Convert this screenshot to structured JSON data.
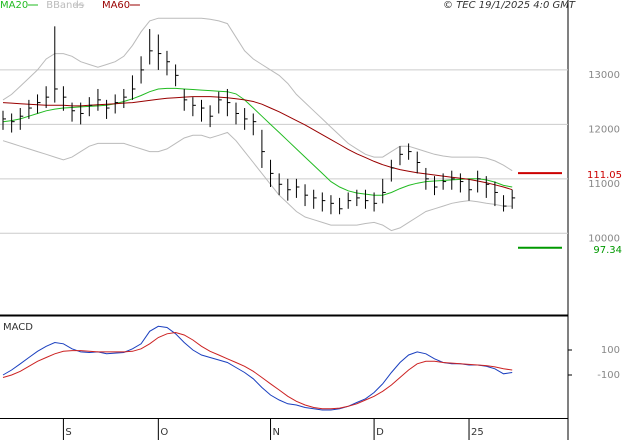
{
  "chart_data": [
    {
      "type": "hlc",
      "source": "© TEC 19/1/2025 4:0 GMT",
      "color": "#000000",
      "high": [
        12250,
        12200,
        12300,
        12450,
        12550,
        12700,
        13800,
        12700,
        12400,
        12400,
        12500,
        12650,
        12450,
        12550,
        12650,
        12900,
        13250,
        13750,
        13650,
        13350,
        13100,
        12650,
        12500,
        12450,
        12350,
        12600,
        12650,
        12400,
        12300,
        12200,
        11900,
        11350,
        11100,
        11000,
        11000,
        10900,
        10800,
        10750,
        10700,
        10650,
        10750,
        10800,
        10800,
        10750,
        11000,
        11350,
        11600,
        11650,
        11500,
        11200,
        11050,
        11100,
        11150,
        11100,
        11000,
        11150,
        11050,
        10950,
        10700,
        10800
      ],
      "low": [
        11900,
        11850,
        11900,
        12100,
        12200,
        12300,
        12400,
        12250,
        12050,
        12000,
        12150,
        12250,
        12100,
        12200,
        12300,
        12450,
        12750,
        13100,
        13000,
        12900,
        12700,
        12250,
        12150,
        12050,
        11950,
        12200,
        12150,
        12000,
        11900,
        11800,
        11200,
        10850,
        10700,
        10600,
        10650,
        10500,
        10450,
        10400,
        10350,
        10350,
        10450,
        10500,
        10450,
        10400,
        10550,
        10950,
        11250,
        11350,
        11100,
        10800,
        10700,
        10800,
        10800,
        10750,
        10600,
        10750,
        10650,
        10500,
        10400,
        10450
      ],
      "close": [
        12100,
        12050,
        12150,
        12300,
        12400,
        12500,
        12650,
        12500,
        12250,
        12200,
        12350,
        12450,
        12300,
        12400,
        12500,
        12650,
        13000,
        13350,
        13300,
        13150,
        12900,
        12450,
        12350,
        12300,
        12150,
        12450,
        12400,
        12200,
        12100,
        12050,
        11500,
        11100,
        10900,
        10800,
        10850,
        10700,
        10650,
        10600,
        10550,
        10450,
        10600,
        10650,
        10600,
        10550,
        10750,
        11200,
        11450,
        11500,
        11300,
        11000,
        10850,
        10950,
        11000,
        10950,
        10800,
        11000,
        10900,
        10750,
        10500,
        10650
      ],
      "series": [
        {
          "name": "MA20",
          "color": "#22bb22",
          "values": [
            12050,
            12070,
            12100,
            12150,
            12200,
            12250,
            12280,
            12300,
            12310,
            12320,
            12330,
            12340,
            12350,
            12380,
            12420,
            12470,
            12530,
            12600,
            12650,
            12660,
            12660,
            12650,
            12640,
            12630,
            12620,
            12610,
            12600,
            12560,
            12450,
            12300,
            12150,
            12000,
            11850,
            11700,
            11550,
            11400,
            11250,
            11100,
            10950,
            10850,
            10780,
            10740,
            10720,
            10700,
            10700,
            10750,
            10820,
            10880,
            10920,
            10950,
            10960,
            10970,
            10980,
            10990,
            11000,
            11000,
            10980,
            10940,
            10880,
            10850
          ]
        },
        {
          "name": "BBands",
          "color": "#bbbbbb",
          "upper": [
            12450,
            12550,
            12700,
            12850,
            13000,
            13200,
            13300,
            13300,
            13250,
            13150,
            13100,
            13050,
            13100,
            13150,
            13250,
            13450,
            13700,
            13900,
            13950,
            13950,
            13950,
            13950,
            13950,
            13950,
            13930,
            13900,
            13850,
            13600,
            13350,
            13200,
            13100,
            13000,
            12900,
            12750,
            12550,
            12400,
            12250,
            12100,
            11950,
            11800,
            11650,
            11550,
            11450,
            11400,
            11400,
            11500,
            11600,
            11600,
            11550,
            11500,
            11450,
            11420,
            11400,
            11400,
            11400,
            11400,
            11380,
            11330,
            11250,
            11150
          ],
          "lower": [
            11700,
            11650,
            11600,
            11550,
            11500,
            11450,
            11400,
            11350,
            11400,
            11500,
            11600,
            11650,
            11650,
            11650,
            11650,
            11600,
            11550,
            11500,
            11500,
            11550,
            11650,
            11750,
            11800,
            11800,
            11750,
            11800,
            11850,
            11700,
            11500,
            11300,
            11100,
            10900,
            10700,
            10550,
            10400,
            10300,
            10250,
            10200,
            10150,
            10150,
            10150,
            10150,
            10180,
            10200,
            10150,
            10050,
            10100,
            10200,
            10300,
            10400,
            10450,
            10500,
            10550,
            10580,
            10600,
            10580,
            10550,
            10530,
            10500,
            10500
          ]
        },
        {
          "name": "MA60",
          "color": "#990000",
          "values": [
            12400,
            12390,
            12380,
            12370,
            12360,
            12350,
            12350,
            12350,
            12340,
            12340,
            12350,
            12360,
            12370,
            12380,
            12390,
            12400,
            12420,
            12440,
            12460,
            12480,
            12490,
            12500,
            12510,
            12510,
            12510,
            12500,
            12490,
            12470,
            12450,
            12420,
            12370,
            12300,
            12230,
            12150,
            12070,
            11990,
            11900,
            11810,
            11720,
            11630,
            11540,
            11460,
            11390,
            11320,
            11260,
            11210,
            11170,
            11140,
            11110,
            11090,
            11070,
            11050,
            11030,
            11010,
            10990,
            10960,
            10930,
            10890,
            10850,
            10800
          ]
        }
      ],
      "annotations": [
        {
          "value": 11105,
          "label": "111.05",
          "color": "#cc0000"
        },
        {
          "value": 9734,
          "label": "97.34",
          "color": "#009900"
        }
      ],
      "ylim": [
        8500,
        14100
      ],
      "yticks": [
        10000,
        11000,
        12000,
        13000
      ],
      "grid": true
    },
    {
      "type": "line",
      "title": "MACD",
      "categories": [
        null,
        null,
        null,
        null,
        null,
        null,
        null,
        "S",
        null,
        null,
        null,
        null,
        null,
        null,
        null,
        null,
        null,
        null,
        "O",
        null,
        null,
        null,
        null,
        null,
        null,
        null,
        null,
        null,
        null,
        null,
        null,
        "N",
        null,
        null,
        null,
        null,
        null,
        null,
        null,
        null,
        null,
        null,
        null,
        "D",
        null,
        null,
        null,
        null,
        null,
        null,
        null,
        null,
        null,
        null,
        "25",
        null,
        null,
        null,
        null,
        null
      ],
      "series": [
        {
          "color": "#1a3fbf",
          "values": [
            -100,
            -60,
            -10,
            40,
            90,
            130,
            160,
            150,
            110,
            85,
            80,
            85,
            70,
            75,
            80,
            110,
            150,
            250,
            290,
            280,
            230,
            160,
            100,
            60,
            40,
            20,
            0,
            -40,
            -80,
            -130,
            -200,
            -260,
            -300,
            -330,
            -340,
            -360,
            -370,
            -380,
            -380,
            -370,
            -350,
            -320,
            -290,
            -240,
            -170,
            -80,
            0,
            60,
            85,
            70,
            30,
            0,
            -10,
            -10,
            -20,
            -20,
            -30,
            -50,
            -90,
            -80
          ]
        },
        {
          "color": "#cc2222",
          "values": [
            -120,
            -100,
            -70,
            -30,
            10,
            40,
            70,
            90,
            95,
            95,
            90,
            85,
            85,
            85,
            85,
            90,
            110,
            150,
            200,
            230,
            240,
            220,
            180,
            130,
            90,
            60,
            30,
            0,
            -30,
            -70,
            -120,
            -170,
            -220,
            -270,
            -310,
            -340,
            -360,
            -370,
            -370,
            -365,
            -350,
            -330,
            -300,
            -270,
            -230,
            -180,
            -120,
            -60,
            -10,
            10,
            10,
            0,
            -5,
            -10,
            -15,
            -20,
            -25,
            -35,
            -50,
            -60
          ]
        }
      ],
      "ylim": [
        -444,
        356
      ],
      "yticks": [
        -100,
        100
      ]
    }
  ]
}
